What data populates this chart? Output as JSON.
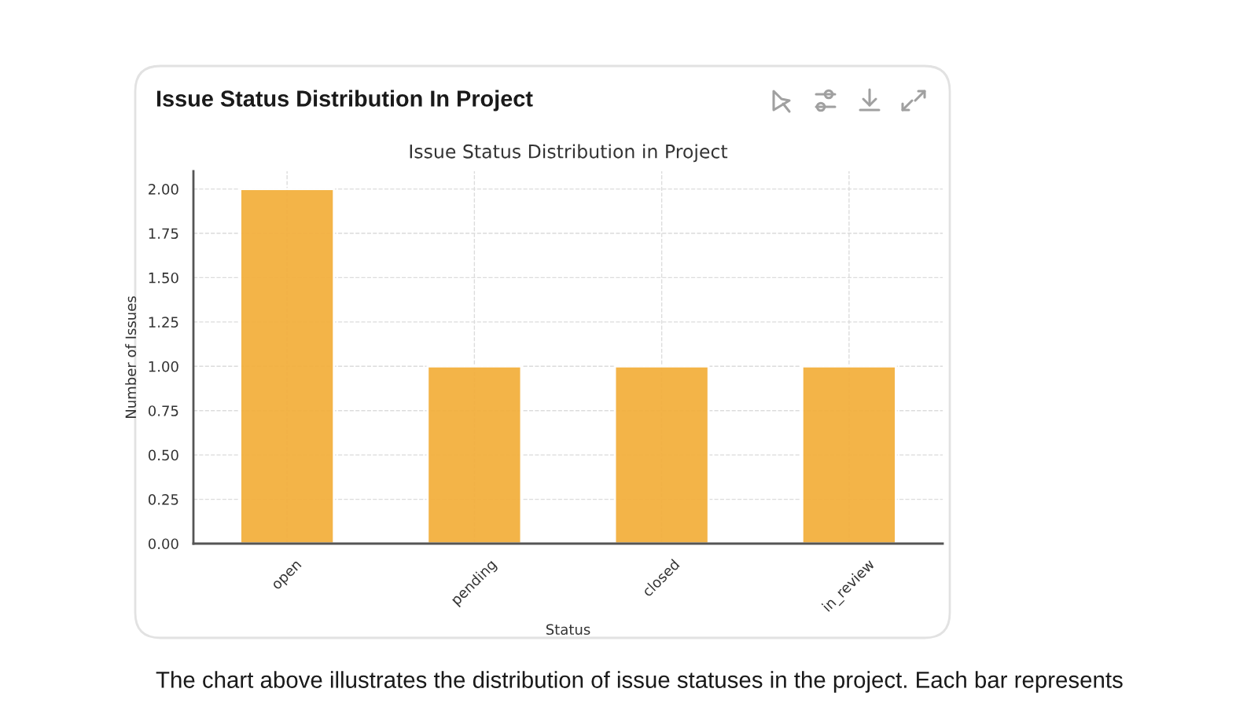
{
  "chart_data": {
    "type": "bar",
    "title": "Issue Status Distribution In Project",
    "subtitle": "Issue Status Distribution in Project",
    "xlabel": "Status",
    "ylabel": "Number of Issues",
    "categories": [
      "open",
      "pending",
      "closed",
      "in_review"
    ],
    "values": [
      2,
      1,
      1,
      1
    ],
    "color": "#f3b03f",
    "ylim": [
      0,
      2.1
    ],
    "yticks": [
      {
        "value": 0,
        "label": "0.00"
      },
      {
        "value": 0.25,
        "label": "0.25"
      },
      {
        "value": 0.5,
        "label": "0.50"
      },
      {
        "value": 0.75,
        "label": "0.75"
      },
      {
        "value": 1,
        "label": "1.00"
      },
      {
        "value": 1.25,
        "label": "1.25"
      },
      {
        "value": 1.5,
        "label": "1.50"
      },
      {
        "value": 1.75,
        "label": "1.75"
      },
      {
        "value": 2,
        "label": "2.00"
      }
    ],
    "grid": true,
    "annotations": [
      "The chart above illustrates the distribution of issue statuses in the project. Each bar represents"
    ]
  }
}
